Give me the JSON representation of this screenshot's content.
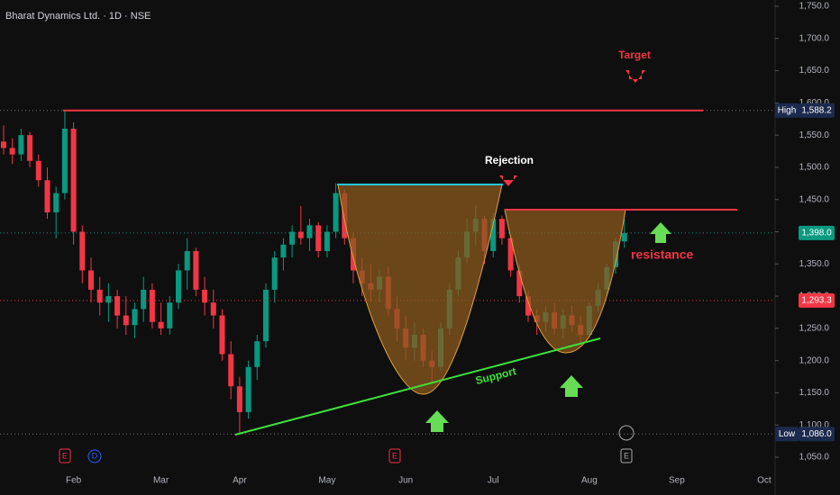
{
  "chart_data": {
    "type": "candlestick",
    "title": "Bharat Dynamics Ltd. · 1D · NSE",
    "categories": [
      null,
      null,
      null,
      null,
      null,
      null,
      null,
      null,
      "Feb",
      null,
      null,
      null,
      null,
      null,
      null,
      null,
      null,
      null,
      "Mar",
      null,
      null,
      null,
      null,
      null,
      null,
      null,
      null,
      "Apr",
      null,
      null,
      null,
      null,
      null,
      null,
      null,
      null,
      null,
      "May",
      null,
      null,
      null,
      null,
      null,
      null,
      null,
      null,
      "Jun",
      null,
      null,
      null,
      null,
      null,
      null,
      null,
      null,
      null,
      "Jul",
      null,
      null,
      null,
      null,
      null,
      null,
      null,
      null,
      null,
      null,
      "Aug",
      null,
      null,
      null,
      null,
      null,
      null,
      null,
      null,
      null,
      "Sep",
      null,
      null,
      null,
      null,
      null,
      null,
      null,
      null,
      null,
      "Oct"
    ],
    "ohlc": [
      [
        1540,
        1565,
        1520,
        1530
      ],
      [
        1530,
        1545,
        1505,
        1520
      ],
      [
        1520,
        1560,
        1510,
        1550
      ],
      [
        1550,
        1555,
        1500,
        1510
      ],
      [
        1510,
        1520,
        1470,
        1480
      ],
      [
        1480,
        1500,
        1420,
        1430
      ],
      [
        1430,
        1470,
        1390,
        1460
      ],
      [
        1460,
        1588.2,
        1450,
        1560
      ],
      [
        1560,
        1570,
        1380,
        1400
      ],
      [
        1400,
        1410,
        1320,
        1340
      ],
      [
        1340,
        1360,
        1290,
        1310
      ],
      [
        1310,
        1330,
        1270,
        1290
      ],
      [
        1290,
        1320,
        1260,
        1300
      ],
      [
        1300,
        1310,
        1250,
        1270
      ],
      [
        1270,
        1300,
        1240,
        1255
      ],
      [
        1255,
        1290,
        1235,
        1280
      ],
      [
        1280,
        1330,
        1260,
        1310
      ],
      [
        1310,
        1320,
        1250,
        1260
      ],
      [
        1260,
        1290,
        1240,
        1250
      ],
      [
        1250,
        1300,
        1240,
        1290
      ],
      [
        1290,
        1350,
        1280,
        1340
      ],
      [
        1340,
        1390,
        1310,
        1370
      ],
      [
        1370,
        1375,
        1300,
        1310
      ],
      [
        1310,
        1330,
        1270,
        1290
      ],
      [
        1290,
        1310,
        1250,
        1270
      ],
      [
        1270,
        1280,
        1200,
        1210
      ],
      [
        1210,
        1230,
        1140,
        1160
      ],
      [
        1160,
        1175,
        1086,
        1120
      ],
      [
        1120,
        1200,
        1110,
        1190
      ],
      [
        1190,
        1240,
        1170,
        1230
      ],
      [
        1230,
        1320,
        1220,
        1310
      ],
      [
        1310,
        1370,
        1290,
        1360
      ],
      [
        1360,
        1390,
        1340,
        1380
      ],
      [
        1380,
        1410,
        1360,
        1400
      ],
      [
        1400,
        1440,
        1380,
        1390
      ],
      [
        1390,
        1420,
        1370,
        1410
      ],
      [
        1410,
        1415,
        1360,
        1370
      ],
      [
        1370,
        1410,
        1360,
        1400
      ],
      [
        1400,
        1475,
        1390,
        1460
      ],
      [
        1460,
        1465,
        1380,
        1390
      ],
      [
        1390,
        1400,
        1320,
        1340
      ],
      [
        1340,
        1360,
        1300,
        1320
      ],
      [
        1320,
        1350,
        1290,
        1310
      ],
      [
        1310,
        1340,
        1290,
        1330
      ],
      [
        1330,
        1345,
        1270,
        1280
      ],
      [
        1280,
        1300,
        1230,
        1250
      ],
      [
        1250,
        1270,
        1200,
        1220
      ],
      [
        1220,
        1260,
        1200,
        1240
      ],
      [
        1240,
        1250,
        1190,
        1200
      ],
      [
        1200,
        1215,
        1165,
        1190
      ],
      [
        1190,
        1260,
        1185,
        1250
      ],
      [
        1250,
        1320,
        1240,
        1310
      ],
      [
        1310,
        1370,
        1300,
        1360
      ],
      [
        1360,
        1420,
        1350,
        1400
      ],
      [
        1400,
        1440,
        1380,
        1420
      ],
      [
        1420,
        1425,
        1350,
        1370
      ],
      [
        1370,
        1430,
        1360,
        1420
      ],
      [
        1420,
        1425,
        1380,
        1390
      ],
      [
        1390,
        1395,
        1330,
        1340
      ],
      [
        1340,
        1350,
        1290,
        1300
      ],
      [
        1300,
        1310,
        1260,
        1270
      ],
      [
        1270,
        1280,
        1240,
        1260
      ],
      [
        1260,
        1285,
        1245,
        1275
      ],
      [
        1275,
        1290,
        1240,
        1250
      ],
      [
        1250,
        1280,
        1235,
        1270
      ],
      [
        1270,
        1285,
        1245,
        1255
      ],
      [
        1255,
        1270,
        1225,
        1240
      ],
      [
        1240,
        1290,
        1235,
        1285
      ],
      [
        1285,
        1320,
        1275,
        1310
      ],
      [
        1310,
        1350,
        1300,
        1345
      ],
      [
        1345,
        1390,
        1335,
        1385
      ],
      [
        1385,
        1420,
        1375,
        1398
      ],
      null,
      null,
      null,
      null,
      null,
      null,
      null,
      null,
      null,
      null,
      null,
      null,
      null,
      null,
      null,
      null
    ],
    "up_color": "#089981",
    "down_color": "#f23645",
    "ylim": [
      1050,
      1750
    ],
    "yticks": [
      {
        "value": 1050,
        "label": "1,050.0"
      },
      {
        "value": 1100,
        "label": "1,100.0"
      },
      {
        "value": 1150,
        "label": "1,150.0"
      },
      {
        "value": 1200,
        "label": "1,200.0"
      },
      {
        "value": 1250,
        "label": "1,250.0"
      },
      {
        "value": 1300,
        "label": "1,300.0"
      },
      {
        "value": 1350,
        "label": "1,350.0"
      },
      {
        "value": 1400,
        "label": "1,400.0"
      },
      {
        "value": 1450,
        "label": "1,450.0"
      },
      {
        "value": 1500,
        "label": "1,500.0"
      },
      {
        "value": 1550,
        "label": "1,550.0"
      },
      {
        "value": 1600,
        "label": "1,600.0"
      },
      {
        "value": 1650,
        "label": "1,650.0"
      },
      {
        "value": 1700,
        "label": "1,700.0"
      },
      {
        "value": 1750,
        "label": "1,750.0"
      }
    ],
    "price_lines": [
      {
        "label": "High",
        "value": 1588.2,
        "value_label": "1,588.2",
        "color": "#1c2a4d"
      },
      {
        "value": 1398.0,
        "value_label": "1,398.0",
        "color": "#089981"
      },
      {
        "value": 1293.3,
        "value_label": "1,293.3",
        "color": "#f23645"
      },
      {
        "label": "Low",
        "value": 1086.0,
        "value_label": "1,086.0",
        "color": "#1c2a4d"
      }
    ],
    "annotations": {
      "target": "Target",
      "rejection": "Rejection",
      "resistance": "resistance",
      "support": "Support"
    }
  }
}
